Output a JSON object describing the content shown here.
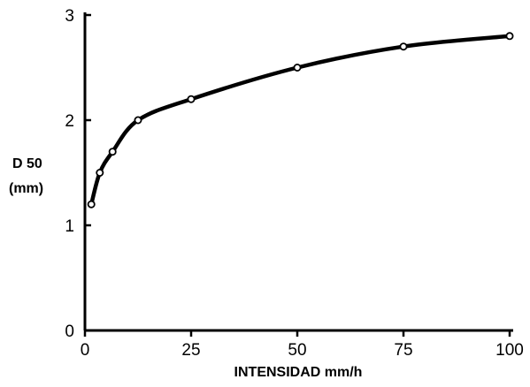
{
  "chart_data": {
    "type": "line",
    "title": "",
    "xlabel": "INTENSIDAD mm/h",
    "ylabel_lines": [
      "D 50",
      "(mm)"
    ],
    "xlim": [
      0,
      100
    ],
    "ylim": [
      0,
      3
    ],
    "xticks": [
      0,
      25,
      50,
      75,
      100
    ],
    "yticks": [
      0,
      1,
      2,
      3
    ],
    "grid": false,
    "series": [
      {
        "x": [
          1.5,
          3.5,
          6.5,
          12.5,
          25,
          50,
          75,
          100
        ],
        "y": [
          1.2,
          1.5,
          1.7,
          2.0,
          2.2,
          2.5,
          2.7,
          2.8
        ]
      }
    ],
    "colors": {
      "line": "#000000",
      "marker_fill": "#ffffff",
      "axis": "#000000"
    }
  }
}
